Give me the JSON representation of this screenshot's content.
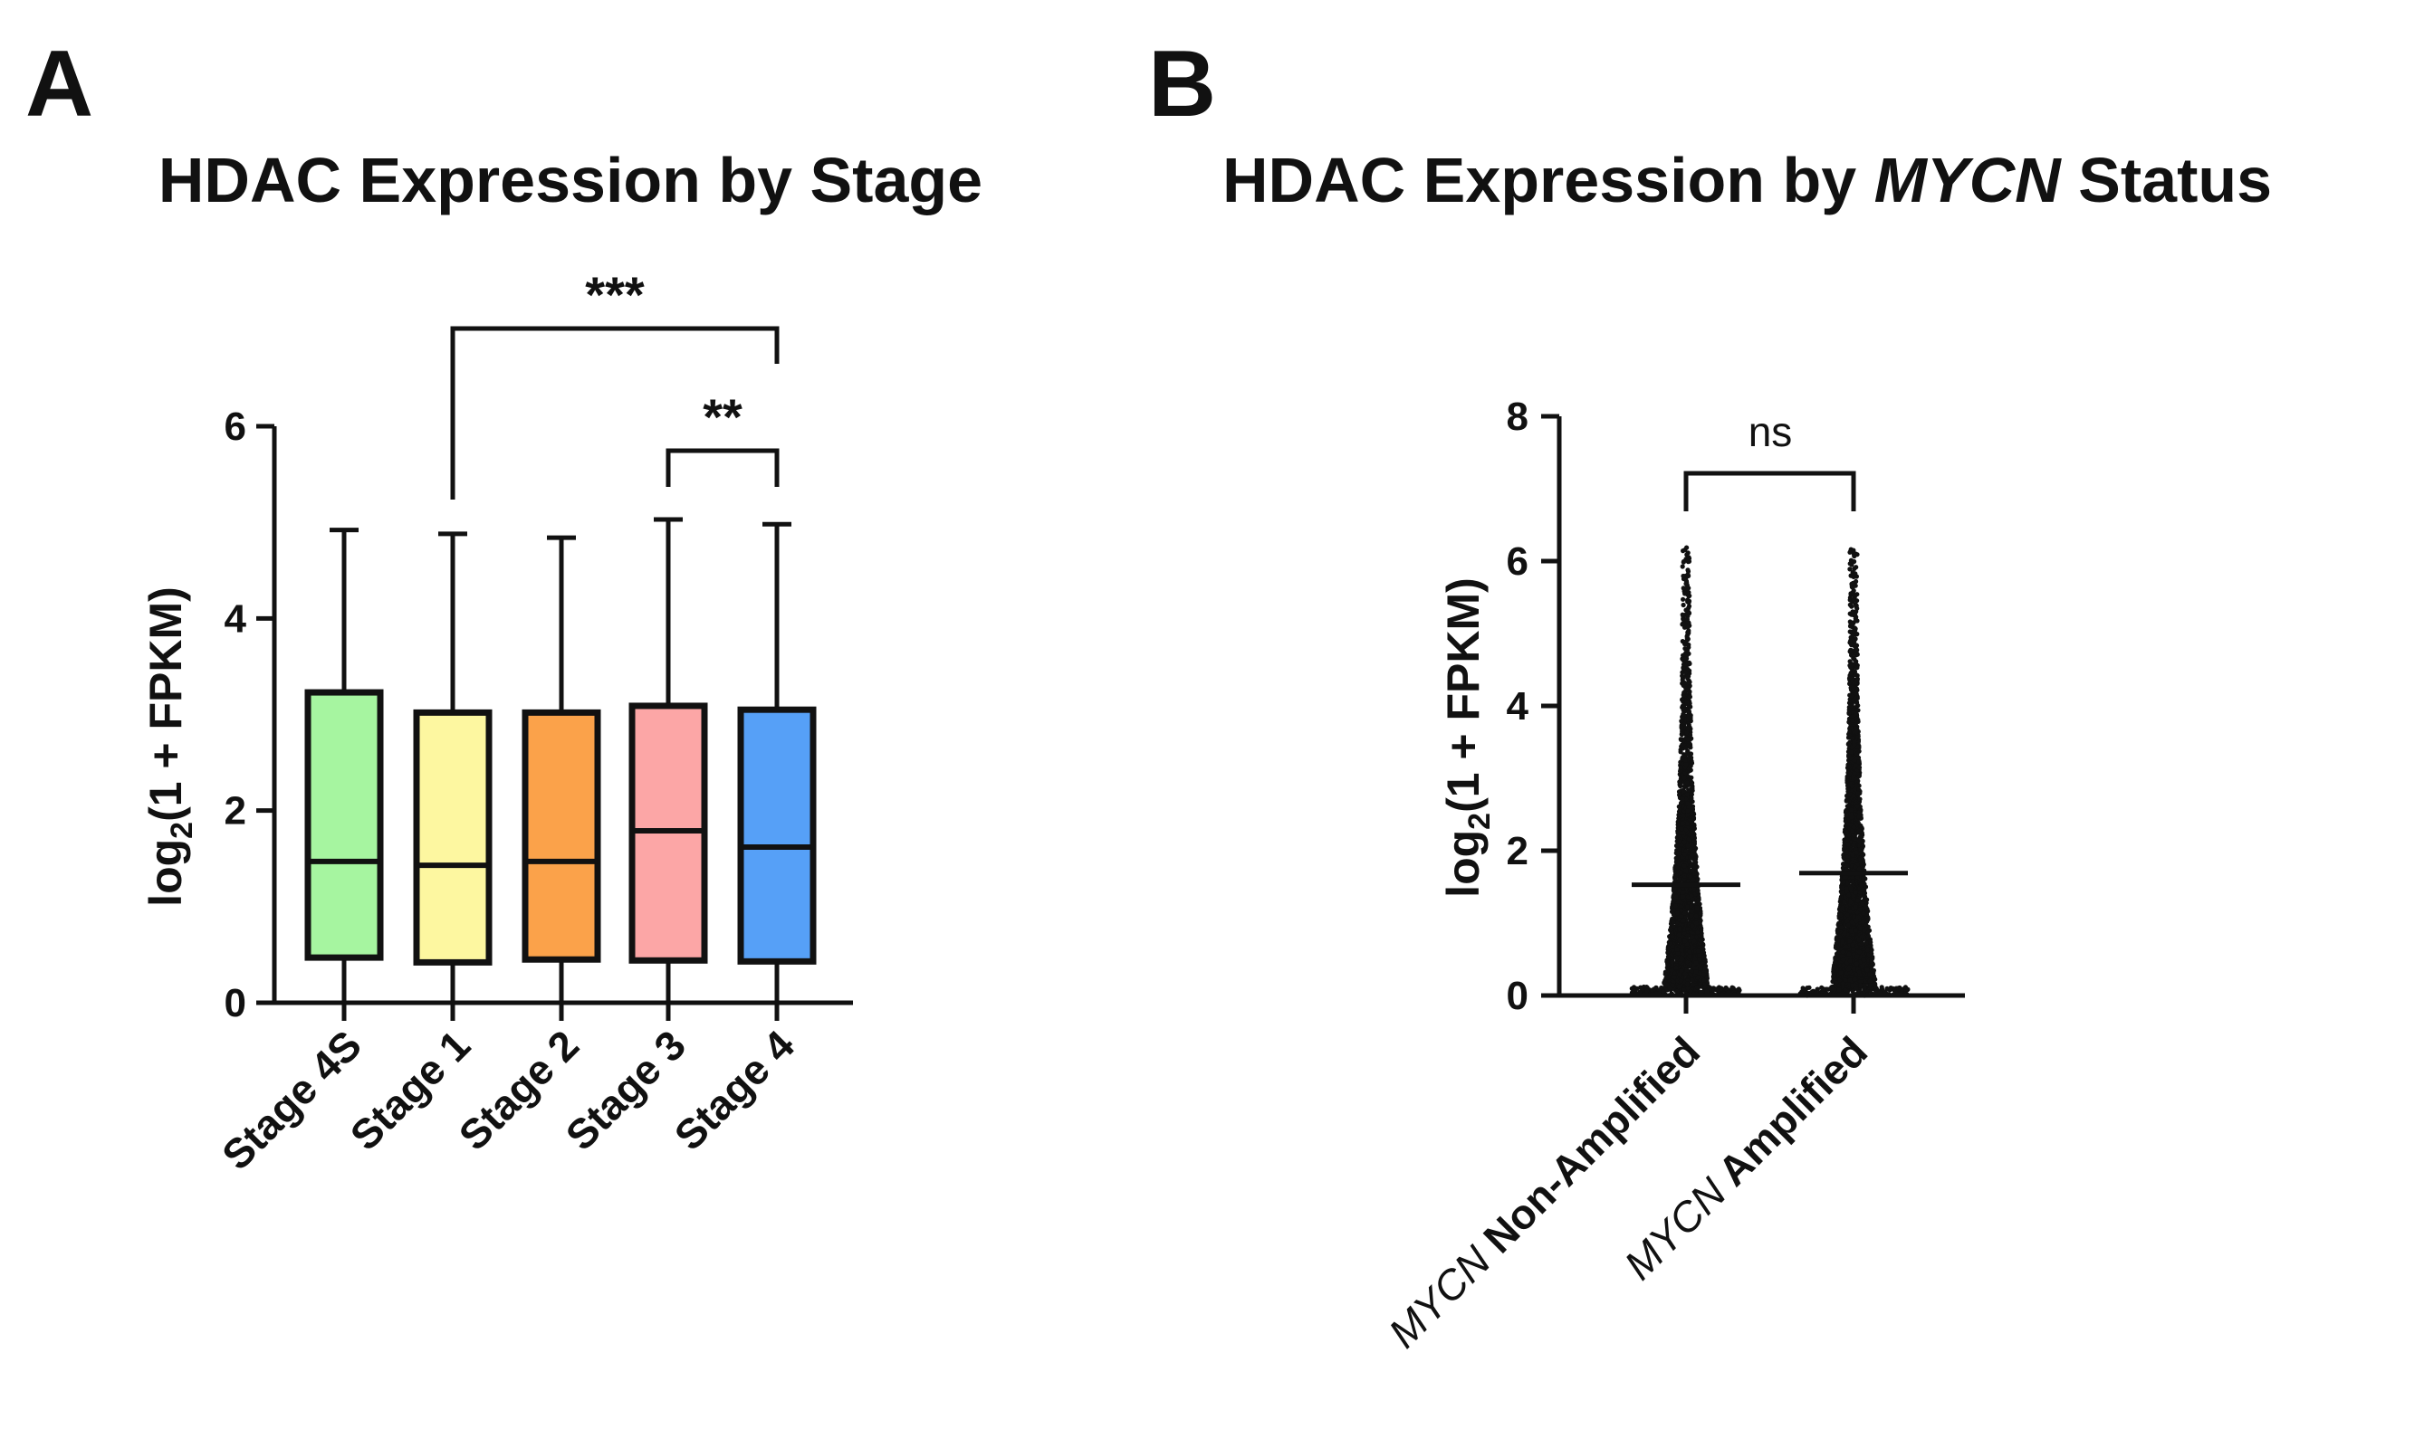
{
  "chart_data": [
    {
      "panel": "A",
      "type": "box",
      "title": "HDAC Expression by Stage",
      "ylabel": {
        "base": "log",
        "subscript": "2",
        "rest": "(1 + FPKM)"
      },
      "xlabel": "",
      "ylim": [
        0,
        6
      ],
      "yticks": [
        0,
        2,
        4,
        6
      ],
      "categories": [
        "Stage 4S",
        "Stage 1",
        "Stage 2",
        "Stage 3",
        "Stage 4"
      ],
      "boxes": [
        {
          "category": "Stage 4S",
          "min": 0,
          "q1": 0.47,
          "median": 1.47,
          "q3": 3.23,
          "max": 4.92,
          "color": "#a6f5a0"
        },
        {
          "category": "Stage 1",
          "min": 0,
          "q1": 0.42,
          "median": 1.43,
          "q3": 3.02,
          "max": 4.88,
          "color": "#fdf7a0"
        },
        {
          "category": "Stage 2",
          "min": 0,
          "q1": 0.45,
          "median": 1.47,
          "q3": 3.02,
          "max": 4.84,
          "color": "#fba24a"
        },
        {
          "category": "Stage 3",
          "min": 0,
          "q1": 0.44,
          "median": 1.79,
          "q3": 3.09,
          "max": 5.03,
          "color": "#fca6a6"
        },
        {
          "category": "Stage 4",
          "min": 0,
          "q1": 0.43,
          "median": 1.62,
          "q3": 3.05,
          "max": 4.98,
          "color": "#56a0f7"
        }
      ],
      "comparisons": [
        {
          "from": "Stage 1",
          "to": "Stage 4",
          "label": "***"
        },
        {
          "from": "Stage 3",
          "to": "Stage 4",
          "label": "**"
        }
      ]
    },
    {
      "panel": "B",
      "type": "scatter",
      "title": {
        "prefix": "HDAC Expression by ",
        "italic": "MYCN",
        "suffix": " Status"
      },
      "ylabel": {
        "base": "log",
        "subscript": "2",
        "rest": "(1 + FPKM)"
      },
      "xlabel": "",
      "ylim": [
        0,
        8
      ],
      "yticks": [
        0,
        2,
        4,
        6,
        8
      ],
      "categories": [
        {
          "italic": "MYCN",
          "rest": " Non-Amplified"
        },
        {
          "italic": "MYCN",
          "rest": " Amplified"
        }
      ],
      "series": [
        {
          "name": "MYCN Non-Amplified",
          "median": 1.53,
          "max": 6.25,
          "min": 0
        },
        {
          "name": "MYCN Amplified",
          "median": 1.69,
          "max": 6.2,
          "min": 0
        }
      ],
      "comparisons": [
        {
          "from": 0,
          "to": 1,
          "label": "ns"
        }
      ],
      "colors": {
        "points": "#111111"
      }
    }
  ],
  "panel_labels": [
    "A",
    "B"
  ]
}
